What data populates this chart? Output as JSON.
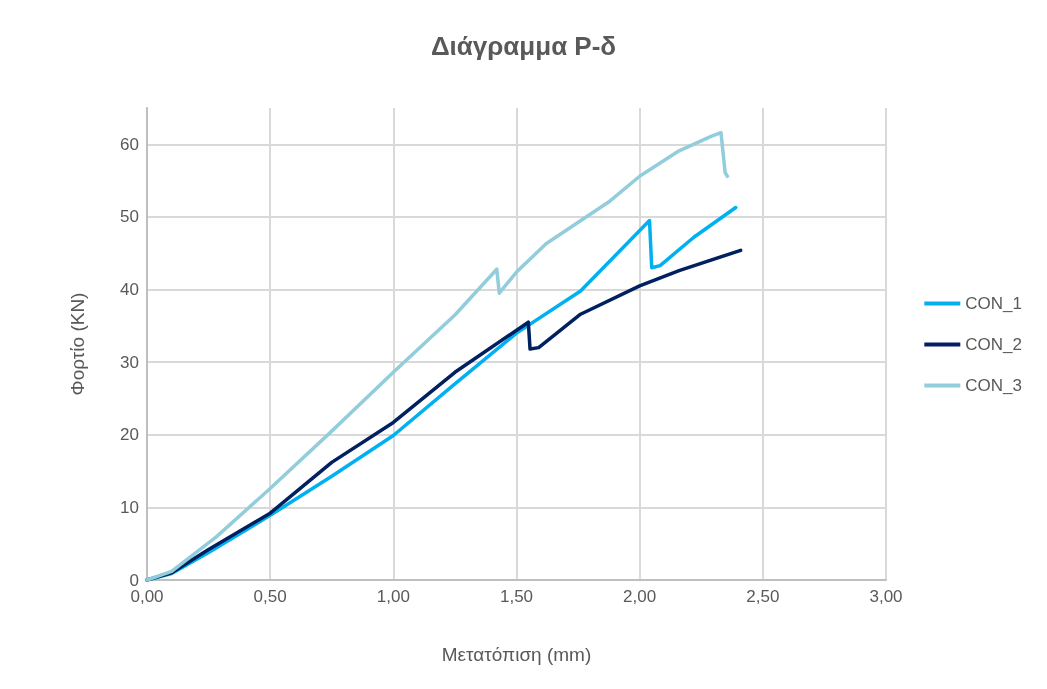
{
  "chart_data": {
    "type": "line",
    "title": "Διάγραμμα P-δ",
    "xlabel": "Μετατόπιση (mm)",
    "ylabel": "Φορτίο (KN)",
    "xlim": [
      0,
      3
    ],
    "xticks": [
      {
        "value": 0,
        "label": "0,00"
      },
      {
        "value": 0.5,
        "label": "0,50"
      },
      {
        "value": 1,
        "label": "1,00"
      },
      {
        "value": 1.5,
        "label": "1,50"
      },
      {
        "value": 2,
        "label": "2,00"
      },
      {
        "value": 2.5,
        "label": "2,50"
      },
      {
        "value": 3,
        "label": "3,00"
      }
    ],
    "ylim": [
      0,
      65
    ],
    "yticks": [
      0,
      10,
      20,
      30,
      40,
      50,
      60
    ],
    "grid": true,
    "legend": "right",
    "marker": "none",
    "line_style": "solid",
    "series": [
      {
        "name": "CON_1",
        "color": "#00b0f0",
        "x": [
          0,
          0.1,
          0.25,
          0.5,
          0.75,
          1.0,
          1.25,
          1.5,
          1.76,
          2.04,
          2.049,
          2.083,
          2.22,
          2.39
        ],
        "values": [
          0,
          0.9,
          3.8,
          8.9,
          14.3,
          19.9,
          27.0,
          34.0,
          39.8,
          49.5,
          43.0,
          43.3,
          47.2,
          51.3
        ]
      },
      {
        "name": "CON_2",
        "color": "#002060",
        "x": [
          0,
          0.1,
          0.25,
          0.5,
          0.75,
          1.0,
          1.25,
          1.548,
          1.555,
          1.59,
          1.76,
          2.0,
          2.16,
          2.41
        ],
        "values": [
          0,
          1.0,
          4.2,
          9.2,
          16.2,
          21.7,
          28.6,
          35.5,
          31.8,
          32.0,
          36.6,
          40.5,
          42.6,
          45.4
        ]
      },
      {
        "name": "CON_3",
        "color": "#92cddc",
        "x": [
          0,
          0.1,
          0.28,
          0.5,
          0.75,
          1.0,
          1.25,
          1.42,
          1.43,
          1.5,
          1.62,
          1.88,
          2.0,
          2.16,
          2.29,
          2.33,
          2.347,
          2.356
        ],
        "values": [
          0,
          1.2,
          5.9,
          12.6,
          20.5,
          28.6,
          36.5,
          42.8,
          39.5,
          42.4,
          46.3,
          52.2,
          55.6,
          59.1,
          61.1,
          61.6,
          56.1,
          55.6
        ]
      }
    ]
  }
}
